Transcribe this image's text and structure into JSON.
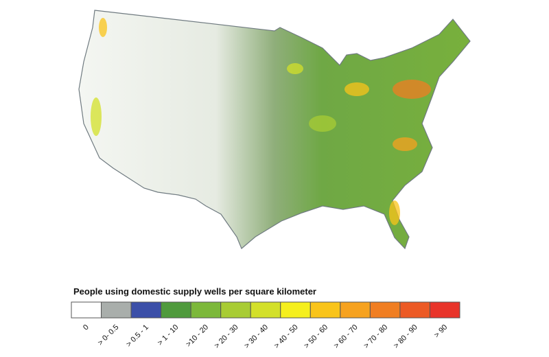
{
  "legend": {
    "title": "People using domestic supply wells per square kilometer",
    "items": [
      {
        "label": "0",
        "color": "#ffffff"
      },
      {
        "label": "> 0- 0.5",
        "color": "#a9aeab"
      },
      {
        "label": "> 0.5 - 1",
        "color": "#3b4fa8"
      },
      {
        "label": "> 1 - 10",
        "color": "#4f9a3c"
      },
      {
        "label": ">10 - 20",
        "color": "#7cb83a"
      },
      {
        "label": "> 20 - 30",
        "color": "#a8cc34"
      },
      {
        "label": "> 30 - 40",
        "color": "#d3e02a"
      },
      {
        "label": "> 40 - 50",
        "color": "#f5ef1e"
      },
      {
        "label": "> 50 - 60",
        "color": "#f9c41a"
      },
      {
        "label": "> 60 - 70",
        "color": "#f6a21f"
      },
      {
        "label": "> 70 - 80",
        "color": "#f07e22"
      },
      {
        "label": "> 80 - 90",
        "color": "#ec5a25"
      },
      {
        "label": "> 90",
        "color": "#e8342a"
      }
    ]
  }
}
